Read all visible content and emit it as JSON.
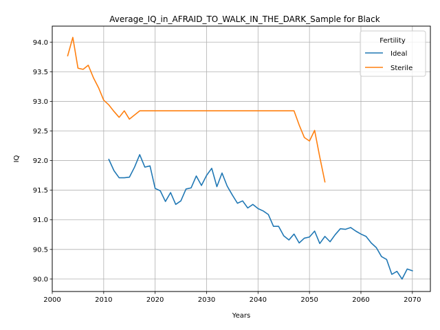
{
  "chart_data": {
    "type": "line",
    "title": "Average_IQ_in_AFRAID_TO_WALK_IN_THE_DARK_Sample for Black",
    "xlabel": "Years",
    "ylabel": "IQ",
    "xlim": [
      2000,
      2073.5
    ],
    "ylim": [
      89.79,
      94.27
    ],
    "x_ticks": [
      2000,
      2010,
      2020,
      2030,
      2040,
      2050,
      2060,
      2070
    ],
    "y_ticks": [
      90.0,
      90.5,
      91.0,
      91.5,
      92.0,
      92.5,
      93.0,
      93.5,
      94.0
    ],
    "y_tick_labels": [
      "90.0",
      "90.5",
      "91.0",
      "91.5",
      "92.0",
      "92.5",
      "93.0",
      "93.5",
      "94.0"
    ],
    "grid": true,
    "legend": {
      "title": "Fertility",
      "placement": "top-right"
    },
    "series": [
      {
        "name": "Ideal",
        "color": "#1f77b4",
        "x": [
          2011,
          2012,
          2013,
          2014,
          2015,
          2016,
          2017,
          2018,
          2019,
          2020,
          2021,
          2022,
          2023,
          2024,
          2025,
          2026,
          2027,
          2028,
          2029,
          2030,
          2031,
          2032,
          2033,
          2034,
          2035,
          2036,
          2037,
          2038,
          2039,
          2040,
          2041,
          2042,
          2043,
          2044,
          2045,
          2046,
          2047,
          2048,
          2049,
          2050,
          2051,
          2052,
          2053,
          2054,
          2055,
          2056,
          2057,
          2058,
          2059,
          2060,
          2061,
          2062,
          2063,
          2064,
          2065,
          2066,
          2067,
          2068,
          2069,
          2070
        ],
        "y": [
          92.02,
          91.83,
          91.71,
          91.71,
          91.72,
          91.89,
          92.1,
          91.89,
          91.91,
          91.53,
          91.49,
          91.31,
          91.46,
          91.26,
          91.32,
          91.52,
          91.54,
          91.74,
          91.58,
          91.75,
          91.87,
          91.56,
          91.79,
          91.57,
          91.42,
          91.28,
          91.32,
          91.2,
          91.26,
          91.19,
          91.15,
          91.09,
          90.89,
          90.89,
          90.73,
          90.66,
          90.76,
          90.61,
          90.69,
          90.71,
          90.81,
          90.6,
          90.72,
          90.63,
          90.75,
          90.85,
          90.84,
          90.87,
          90.81,
          90.76,
          90.72,
          90.61,
          90.53,
          90.38,
          90.33,
          90.08,
          90.13,
          90.0,
          90.17,
          90.14
        ]
      },
      {
        "name": "Sterile",
        "color": "#ff7f0e",
        "x": [
          2003,
          2004,
          2005,
          2006,
          2007,
          2008,
          2009,
          2010,
          2011,
          2012,
          2013,
          2014,
          2015,
          2016,
          2017,
          2018,
          2019,
          2020,
          2021,
          2022,
          2023,
          2024,
          2025,
          2026,
          2027,
          2028,
          2029,
          2030,
          2031,
          2032,
          2033,
          2034,
          2035,
          2036,
          2037,
          2038,
          2039,
          2040,
          2041,
          2042,
          2043,
          2044,
          2045,
          2046,
          2047,
          2048,
          2049,
          2050,
          2051,
          2052,
          2053
        ],
        "y": [
          93.77,
          94.08,
          93.56,
          93.54,
          93.61,
          93.4,
          93.23,
          93.02,
          92.94,
          92.83,
          92.73,
          92.84,
          92.7,
          92.77,
          92.84,
          92.84,
          92.84,
          92.84,
          92.84,
          92.84,
          92.84,
          92.84,
          92.84,
          92.84,
          92.84,
          92.84,
          92.84,
          92.84,
          92.84,
          92.84,
          92.84,
          92.84,
          92.84,
          92.84,
          92.84,
          92.84,
          92.84,
          92.84,
          92.84,
          92.84,
          92.84,
          92.84,
          92.84,
          92.84,
          92.84,
          92.6,
          92.39,
          92.33,
          92.51,
          92.06,
          91.64
        ]
      }
    ]
  }
}
